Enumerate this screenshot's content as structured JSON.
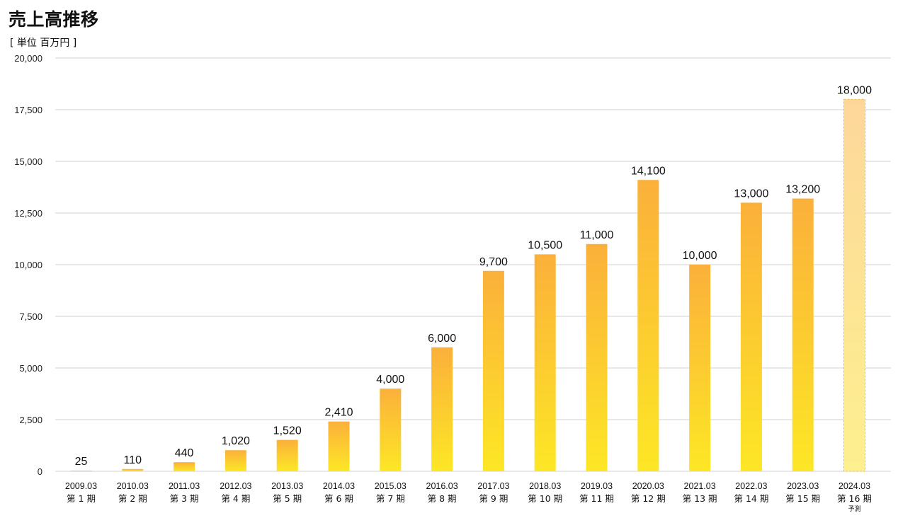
{
  "chart_data": {
    "type": "bar",
    "title": "売上高推移",
    "unit_label": "[ 単位  百万円 ]",
    "ylim": [
      0,
      20000
    ],
    "yticks": [
      "0",
      "2,500",
      "5,000",
      "7,500",
      "10,000",
      "12,500",
      "15,000",
      "17,500",
      "20,000"
    ],
    "ytick_values": [
      0,
      2500,
      5000,
      7500,
      10000,
      12500,
      15000,
      17500,
      20000
    ],
    "grid": true,
    "categories": [
      "2009.03",
      "2010.03",
      "2011.03",
      "2012.03",
      "2013.03",
      "2014.03",
      "2015.03",
      "2016.03",
      "2017.03",
      "2018.03",
      "2019.03",
      "2020.03",
      "2021.03",
      "2022.03",
      "2023.03",
      "2024.03"
    ],
    "periods": [
      "第 1 期",
      "第 2 期",
      "第 3 期",
      "第 4 期",
      "第 5 期",
      "第 6 期",
      "第 7 期",
      "第 8 期",
      "第 9 期",
      "第 10 期",
      "第 11 期",
      "第 12 期",
      "第 13 期",
      "第 14 期",
      "第 15 期",
      "第 16 期"
    ],
    "values": [
      25,
      110,
      440,
      1020,
      1520,
      2410,
      4000,
      6000,
      9700,
      10500,
      11000,
      14100,
      10000,
      13000,
      13200,
      18000
    ],
    "value_labels": [
      "25",
      "110",
      "440",
      "1,020",
      "1,520",
      "2,410",
      "4,000",
      "6,000",
      "9,700",
      "10,500",
      "11,000",
      "14,100",
      "10,000",
      "13,000",
      "13,200",
      "18,000"
    ],
    "forecast_index": 15,
    "forecast_note": "予測",
    "colors": {
      "bar_top": "#fbb03b",
      "bar_bottom": "#fde725",
      "forecast_top": "#fdd79a",
      "forecast_bottom": "#fdf08f",
      "forecast_border": "#f5b94a",
      "grid": "#d0d0d0"
    }
  }
}
